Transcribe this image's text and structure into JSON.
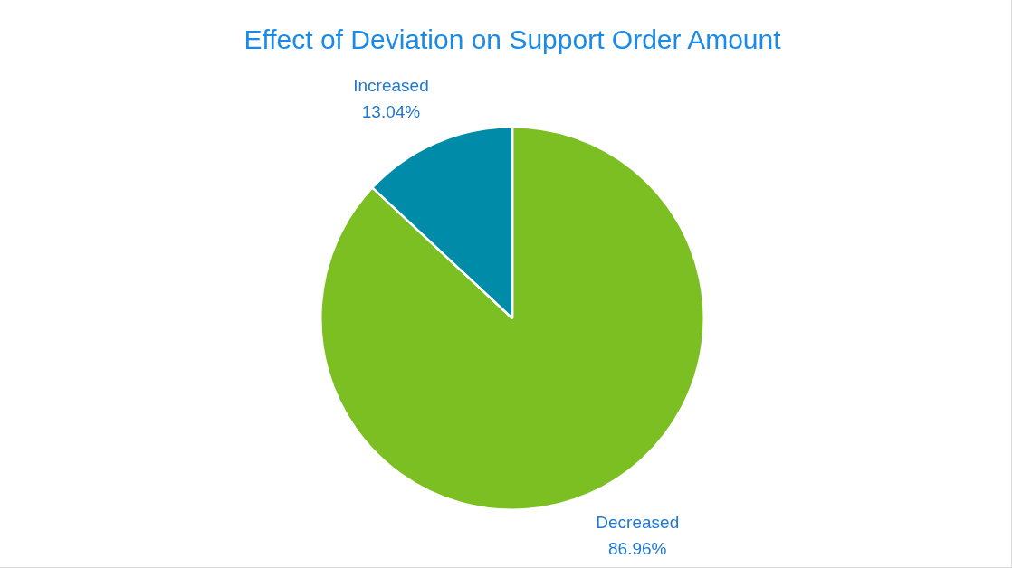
{
  "chart_data": {
    "type": "pie",
    "title": "Effect of Deviation on Support Order Amount",
    "categories": [
      "Decreased",
      "Increased"
    ],
    "values": [
      86.96,
      13.04
    ],
    "colors": [
      "#7cbf22",
      "#008ca9"
    ],
    "value_labels": [
      "86.96%",
      "13.04%"
    ]
  }
}
